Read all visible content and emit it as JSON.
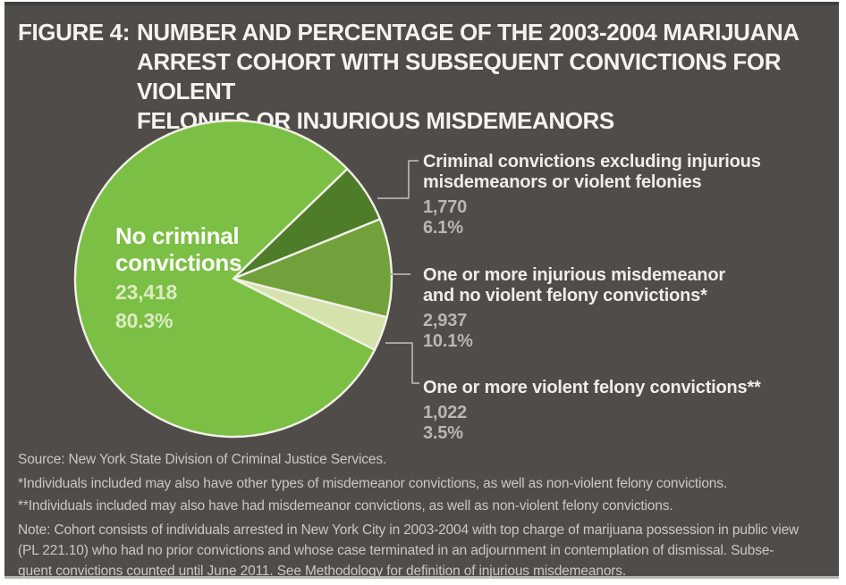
{
  "figure": {
    "label": "FIGURE 4:",
    "title_lines": "NUMBER AND PERCENTAGE OF THE 2003-2004 MARIJUANA\nARREST COHORT WITH SUBSEQUENT CONVICTIONS FOR VIOLENT\nFELONIES OR INJURIOUS MISDEMEANORS"
  },
  "chart_data": {
    "type": "pie",
    "title": "FIGURE 4: NUMBER AND PERCENTAGE OF THE 2003-2004 MARIJUANA ARREST COHORT WITH SUBSEQUENT CONVICTIONS FOR VIOLENT FELONIES OR INJURIOUS MISDEMEANORS",
    "label_position": "right-callouts",
    "start_angle_deg": 44,
    "background": "#4f4c49",
    "stroke_color": "#f2f1e8",
    "slices": [
      {
        "label": "Criminal convictions excluding injurious misdemeanors or violent felonies",
        "label_lines": [
          "Criminal convictions excluding injurious",
          "misdemeanors or violent felonies"
        ],
        "value": 1770,
        "count_label": "1,770",
        "pct": 6.1,
        "pct_label": "6.1%",
        "color": "#4e7c29"
      },
      {
        "label": "One or more injurious misdemeanor and no violent felony convictions*",
        "label_lines": [
          "One or more injurious misdemeanor",
          "and no violent felony convictions*"
        ],
        "value": 2937,
        "count_label": "2,937",
        "pct": 10.1,
        "pct_label": "10.1%",
        "color": "#72a13b"
      },
      {
        "label": "One or more violent felony convictions**",
        "label_lines": [
          "One or more violent felony convictions**"
        ],
        "value": 1022,
        "count_label": "1,022",
        "pct": 3.5,
        "pct_label": "3.5%",
        "color": "#d5e2ac"
      },
      {
        "label": "No criminal convictions",
        "label_lines": [
          "No criminal",
          "convictions"
        ],
        "value": 23418,
        "count_label": "23,418",
        "pct": 80.3,
        "pct_label": "80.3%",
        "color": "#7cbf45"
      }
    ]
  },
  "footnotes": {
    "source": "Source: New York State Division of Criminal Justice Services.",
    "asterisk1": "*Individuals included may also have other types of misdemeanor convictions, as well as non-violent felony convictions.",
    "asterisk2": "**Individuals included may also have had misdemeanor convictions, as well as non-violent felony convictions.",
    "note": "Note: Cohort consists of individuals arrested in New York City in 2003-2004 with top charge of marijuana possession in public view\n(PL 221.10) who had no prior convictions and whose case terminated in an adjournment in contemplation of dismissal. Subse-\nquent convictions counted until June 2011. See Methodology for definition of injurious misdemeanors."
  }
}
